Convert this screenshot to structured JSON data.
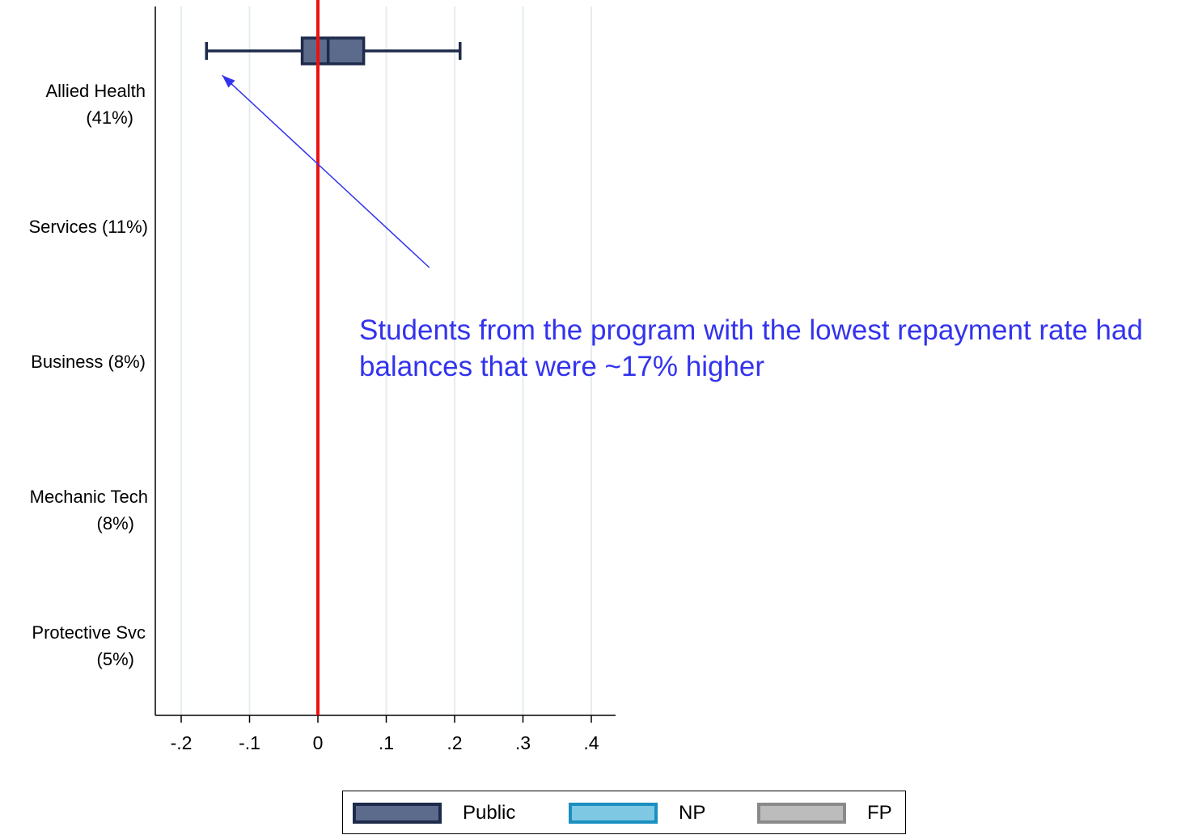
{
  "chart_data": {
    "type": "boxplot",
    "title": "",
    "xlabel": "",
    "ylabel": "",
    "xlim": [
      -0.2,
      0.4
    ],
    "xticks": [
      -0.2,
      -0.1,
      0,
      0.1,
      0.2,
      0.3,
      0.4
    ],
    "xtick_labels": [
      "-.2",
      "-.1",
      "0",
      ".1",
      ".2",
      ".3",
      ".4"
    ],
    "reference_line": 0,
    "reference_line_color": "#ee1111",
    "categories": [
      {
        "line1": "Allied Health",
        "line2": "(41%)"
      },
      {
        "line1": "Services (11%)",
        "line2": ""
      },
      {
        "line1": "Business (8%)",
        "line2": ""
      },
      {
        "line1": "Mechanic Tech",
        "line2": "(8%)"
      },
      {
        "line1": "Protective Svc",
        "line2": "(5%)"
      }
    ],
    "series": [
      {
        "name": "Public",
        "fill": "#5c6a8c",
        "stroke": "#1e2a4a",
        "boxes": [
          {
            "category": 0,
            "min": -0.163,
            "q1": -0.023,
            "median": 0.015,
            "q3": 0.067,
            "max": 0.208
          }
        ]
      },
      {
        "name": "NP",
        "fill": "#7ec8e3",
        "stroke": "#1a8fc0",
        "boxes": []
      },
      {
        "name": "FP",
        "fill": "#bcbcbc",
        "stroke": "#8a8a8a",
        "boxes": []
      }
    ],
    "grid": true,
    "legend": "bottom",
    "annotation": {
      "lines": [
        "Students from the program with the lowest repayment rate had",
        "balances that were ~17% higher"
      ],
      "color": "#3333ee",
      "arrow_from": {
        "x": 0.163,
        "category": 1.6
      },
      "arrow_to": {
        "x": -0.14,
        "category": 0.18
      }
    }
  }
}
